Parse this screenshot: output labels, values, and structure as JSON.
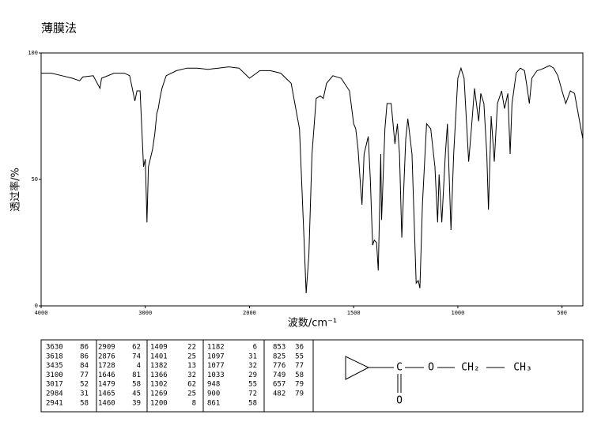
{
  "chart_data": {
    "type": "line",
    "title": "薄膜法",
    "x_label": "波数/cm⁻¹",
    "y_label": "透过率/%",
    "color": "#000000",
    "xlim": [
      4000,
      400
    ],
    "xticks": [
      4000,
      3000,
      2000,
      1500,
      1000,
      500
    ],
    "ylim": [
      0,
      100
    ],
    "yticks": [
      0,
      50,
      100
    ],
    "x": [
      4000,
      3900,
      3800,
      3700,
      3630,
      3600,
      3500,
      3435,
      3420,
      3300,
      3200,
      3150,
      3100,
      3080,
      3050,
      3017,
      3000,
      2984,
      2970,
      2941,
      2930,
      2909,
      2890,
      2876,
      2860,
      2840,
      2800,
      2700,
      2600,
      2500,
      2400,
      2300,
      2200,
      2100,
      2050,
      2000,
      1950,
      1900,
      1850,
      1800,
      1760,
      1740,
      1728,
      1715,
      1700,
      1680,
      1660,
      1646,
      1630,
      1600,
      1560,
      1520,
      1500,
      1490,
      1479,
      1465,
      1460,
      1450,
      1430,
      1420,
      1409,
      1401,
      1390,
      1382,
      1375,
      1370,
      1366,
      1350,
      1340,
      1320,
      1302,
      1290,
      1280,
      1269,
      1250,
      1240,
      1220,
      1200,
      1190,
      1182,
      1170,
      1150,
      1130,
      1110,
      1097,
      1090,
      1077,
      1060,
      1050,
      1033,
      1020,
      1000,
      985,
      970,
      960,
      948,
      935,
      920,
      900,
      890,
      875,
      861,
      853,
      840,
      825,
      810,
      790,
      776,
      760,
      749,
      740,
      720,
      700,
      680,
      665,
      657,
      645,
      620,
      600,
      560,
      540,
      520,
      500,
      482,
      460,
      440,
      420,
      400
    ],
    "values": [
      92,
      92,
      91,
      90,
      89,
      90.5,
      91,
      86,
      90,
      92,
      92,
      91,
      81,
      85,
      85,
      55,
      58,
      33,
      55,
      60,
      62,
      68,
      76,
      78,
      82,
      86,
      91,
      93,
      94,
      94,
      93.5,
      94,
      94.5,
      94,
      92,
      90,
      93,
      93,
      92,
      88,
      70,
      30,
      5,
      20,
      60,
      82,
      83,
      82,
      88,
      91,
      90,
      85,
      72,
      70,
      62,
      45,
      40,
      60,
      67,
      50,
      24,
      26,
      25,
      14,
      40,
      60,
      34,
      70,
      80,
      80,
      64,
      72,
      60,
      27,
      66,
      74,
      60,
      9,
      10,
      7,
      40,
      72,
      70,
      55,
      33,
      52,
      33,
      60,
      72,
      30,
      60,
      90,
      94,
      90,
      75,
      57,
      70,
      86,
      73,
      84,
      80,
      60,
      38,
      75,
      57,
      80,
      85,
      78,
      84,
      60,
      80,
      92,
      94,
      93,
      85,
      80,
      90,
      93,
      93.5,
      95,
      94,
      91,
      85,
      80,
      85,
      84,
      75,
      66
    ]
  },
  "peak_table": {
    "columns": [
      [
        [
          3630,
          86
        ],
        [
          3618,
          86
        ],
        [
          3435,
          84
        ],
        [
          3100,
          77
        ],
        [
          3017,
          52
        ],
        [
          2984,
          31
        ],
        [
          2941,
          58
        ]
      ],
      [
        [
          2909,
          62
        ],
        [
          2876,
          74
        ],
        [
          1728,
          4
        ],
        [
          1646,
          81
        ],
        [
          1479,
          58
        ],
        [
          1465,
          45
        ],
        [
          1460,
          39
        ]
      ],
      [
        [
          1409,
          22
        ],
        [
          1401,
          25
        ],
        [
          1382,
          13
        ],
        [
          1366,
          32
        ],
        [
          1302,
          62
        ],
        [
          1269,
          25
        ],
        [
          1200,
          8
        ]
      ],
      [
        [
          1182,
          6
        ],
        [
          1097,
          31
        ],
        [
          1077,
          32
        ],
        [
          1033,
          29
        ],
        [
          948,
          55
        ],
        [
          900,
          72
        ],
        [
          861,
          58
        ]
      ],
      [
        [
          853,
          36
        ],
        [
          825,
          55
        ],
        [
          776,
          77
        ],
        [
          749,
          58
        ],
        [
          657,
          79
        ],
        [
          482,
          79
        ]
      ]
    ]
  },
  "structure": {
    "labels": [
      "C",
      "O",
      "CH₂",
      "CH₃",
      "O"
    ]
  }
}
